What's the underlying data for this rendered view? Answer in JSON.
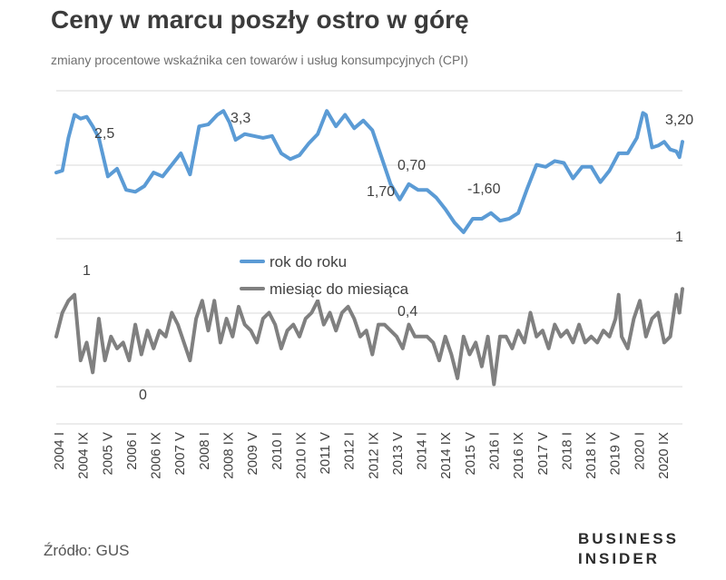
{
  "title": "Ceny w marcu poszły ostro w górę",
  "subtitle": "zmiany procentowe wskaźnika cen towarów i usług konsumpcyjnych (CPI)",
  "source": "Źródło: GUS",
  "logo": {
    "line1": "BUSINESS",
    "line2": "INSIDER"
  },
  "chart_data": {
    "type": "line",
    "x_start": "2004-01",
    "x_end": "2021-03",
    "x_ticks": [
      "2004 I",
      "2004 IX",
      "2005 V",
      "2006 I",
      "2006 IX",
      "2007 V",
      "2008 I",
      "2008 IX",
      "2009 V",
      "2010 I",
      "2010 IX",
      "2011 V",
      "2012 I",
      "2012 IX",
      "2013 V",
      "2014 I",
      "2014 IX",
      "2015 V",
      "2016 I",
      "2016 IX",
      "2017 V",
      "2018 I",
      "2018 IX",
      "2019 V",
      "2020 I",
      "2020 IX"
    ],
    "grid": true,
    "legend_position": "center",
    "series": [
      {
        "name": "rok do roku",
        "color": "#5b9bd5",
        "points": [
          [
            "2004-01",
            1.6
          ],
          [
            "2004-03",
            1.7
          ],
          [
            "2004-05",
            3.4
          ],
          [
            "2004-07",
            4.6
          ],
          [
            "2004-09",
            4.4
          ],
          [
            "2004-11",
            4.5
          ],
          [
            "2005-01",
            4.0
          ],
          [
            "2005-03",
            3.4
          ],
          [
            "2005-06",
            1.4
          ],
          [
            "2005-09",
            1.8
          ],
          [
            "2005-12",
            0.7
          ],
          [
            "2006-03",
            0.6
          ],
          [
            "2006-06",
            0.9
          ],
          [
            "2006-09",
            1.6
          ],
          [
            "2006-12",
            1.4
          ],
          [
            "2007-03",
            2.0
          ],
          [
            "2007-06",
            2.6
          ],
          [
            "2007-09",
            1.5
          ],
          [
            "2007-12",
            4.0
          ],
          [
            "2008-03",
            4.1
          ],
          [
            "2008-06",
            4.6
          ],
          [
            "2008-08",
            4.8
          ],
          [
            "2008-10",
            4.2
          ],
          [
            "2008-12",
            3.3
          ],
          [
            "2009-03",
            3.6
          ],
          [
            "2009-06",
            3.5
          ],
          [
            "2009-09",
            3.4
          ],
          [
            "2009-12",
            3.5
          ],
          [
            "2010-03",
            2.6
          ],
          [
            "2010-06",
            2.3
          ],
          [
            "2010-09",
            2.5
          ],
          [
            "2010-12",
            3.1
          ],
          [
            "2011-03",
            3.6
          ],
          [
            "2011-06",
            4.8
          ],
          [
            "2011-09",
            4.0
          ],
          [
            "2011-12",
            4.6
          ],
          [
            "2012-03",
            3.9
          ],
          [
            "2012-06",
            4.3
          ],
          [
            "2012-09",
            3.8
          ],
          [
            "2012-12",
            2.4
          ],
          [
            "2013-03",
            1.0
          ],
          [
            "2013-06",
            0.2
          ],
          [
            "2013-09",
            1.0
          ],
          [
            "2013-12",
            0.7
          ],
          [
            "2014-03",
            0.7
          ],
          [
            "2014-06",
            0.3
          ],
          [
            "2014-09",
            -0.3
          ],
          [
            "2014-12",
            -1.0
          ],
          [
            "2015-03",
            -1.5
          ],
          [
            "2015-06",
            -0.8
          ],
          [
            "2015-09",
            -0.8
          ],
          [
            "2015-12",
            -0.5
          ],
          [
            "2016-03",
            -0.9
          ],
          [
            "2016-06",
            -0.8
          ],
          [
            "2016-09",
            -0.5
          ],
          [
            "2016-12",
            0.8
          ],
          [
            "2017-03",
            2.0
          ],
          [
            "2017-06",
            1.9
          ],
          [
            "2017-09",
            2.2
          ],
          [
            "2017-12",
            2.1
          ],
          [
            "2018-03",
            1.3
          ],
          [
            "2018-06",
            1.9
          ],
          [
            "2018-09",
            1.9
          ],
          [
            "2018-12",
            1.1
          ],
          [
            "2019-03",
            1.7
          ],
          [
            "2019-06",
            2.6
          ],
          [
            "2019-09",
            2.6
          ],
          [
            "2019-12",
            3.4
          ],
          [
            "2020-02",
            4.7
          ],
          [
            "2020-03",
            4.6
          ],
          [
            "2020-05",
            2.9
          ],
          [
            "2020-07",
            3.0
          ],
          [
            "2020-09",
            3.2
          ],
          [
            "2020-11",
            2.8
          ],
          [
            "2021-01",
            2.7
          ],
          [
            "2021-02",
            2.4
          ],
          [
            "2021-03",
            3.2
          ]
        ]
      },
      {
        "name": "miesiąc do miesiąca",
        "color": "#808080",
        "points": [
          [
            "2004-01",
            0.2
          ],
          [
            "2004-03",
            0.6
          ],
          [
            "2004-05",
            0.8
          ],
          [
            "2004-07",
            0.9
          ],
          [
            "2004-09",
            -0.2
          ],
          [
            "2004-11",
            0.1
          ],
          [
            "2005-01",
            -0.4
          ],
          [
            "2005-03",
            0.5
          ],
          [
            "2005-05",
            -0.2
          ],
          [
            "2005-07",
            0.2
          ],
          [
            "2005-09",
            0.0
          ],
          [
            "2005-11",
            0.1
          ],
          [
            "2006-01",
            -0.2
          ],
          [
            "2006-03",
            0.4
          ],
          [
            "2006-05",
            -0.1
          ],
          [
            "2006-07",
            0.3
          ],
          [
            "2006-09",
            0.0
          ],
          [
            "2006-11",
            0.3
          ],
          [
            "2007-01",
            0.2
          ],
          [
            "2007-03",
            0.6
          ],
          [
            "2007-05",
            0.4
          ],
          [
            "2007-07",
            0.1
          ],
          [
            "2007-09",
            -0.2
          ],
          [
            "2007-11",
            0.5
          ],
          [
            "2008-01",
            0.8
          ],
          [
            "2008-03",
            0.3
          ],
          [
            "2008-05",
            0.8
          ],
          [
            "2008-07",
            0.1
          ],
          [
            "2008-09",
            0.5
          ],
          [
            "2008-11",
            0.2
          ],
          [
            "2009-01",
            0.7
          ],
          [
            "2009-03",
            0.4
          ],
          [
            "2009-05",
            0.3
          ],
          [
            "2009-07",
            0.1
          ],
          [
            "2009-09",
            0.5
          ],
          [
            "2009-11",
            0.6
          ],
          [
            "2010-01",
            0.4
          ],
          [
            "2010-03",
            0.0
          ],
          [
            "2010-05",
            0.3
          ],
          [
            "2010-07",
            0.4
          ],
          [
            "2010-09",
            0.2
          ],
          [
            "2010-11",
            0.5
          ],
          [
            "2011-01",
            0.6
          ],
          [
            "2011-03",
            0.8
          ],
          [
            "2011-05",
            0.4
          ],
          [
            "2011-07",
            0.6
          ],
          [
            "2011-09",
            0.3
          ],
          [
            "2011-11",
            0.6
          ],
          [
            "2012-01",
            0.7
          ],
          [
            "2012-03",
            0.5
          ],
          [
            "2012-05",
            0.2
          ],
          [
            "2012-07",
            0.3
          ],
          [
            "2012-09",
            -0.1
          ],
          [
            "2012-11",
            0.4
          ],
          [
            "2013-01",
            0.4
          ],
          [
            "2013-03",
            0.3
          ],
          [
            "2013-05",
            0.2
          ],
          [
            "2013-07",
            0.0
          ],
          [
            "2013-09",
            0.4
          ],
          [
            "2013-11",
            0.2
          ],
          [
            "2014-01",
            0.2
          ],
          [
            "2014-03",
            0.2
          ],
          [
            "2014-05",
            0.1
          ],
          [
            "2014-07",
            -0.2
          ],
          [
            "2014-09",
            0.2
          ],
          [
            "2014-11",
            -0.1
          ],
          [
            "2015-01",
            -0.5
          ],
          [
            "2015-03",
            0.2
          ],
          [
            "2015-05",
            -0.1
          ],
          [
            "2015-07",
            0.1
          ],
          [
            "2015-09",
            -0.3
          ],
          [
            "2015-11",
            0.2
          ],
          [
            "2016-01",
            -0.6
          ],
          [
            "2016-03",
            0.2
          ],
          [
            "2016-05",
            0.2
          ],
          [
            "2016-07",
            0.0
          ],
          [
            "2016-09",
            0.3
          ],
          [
            "2016-11",
            0.1
          ],
          [
            "2017-01",
            0.6
          ],
          [
            "2017-03",
            0.2
          ],
          [
            "2017-05",
            0.3
          ],
          [
            "2017-07",
            0.0
          ],
          [
            "2017-09",
            0.4
          ],
          [
            "2017-11",
            0.2
          ],
          [
            "2018-01",
            0.3
          ],
          [
            "2018-03",
            0.1
          ],
          [
            "2018-05",
            0.4
          ],
          [
            "2018-07",
            0.1
          ],
          [
            "2018-09",
            0.2
          ],
          [
            "2018-11",
            0.1
          ],
          [
            "2019-01",
            0.3
          ],
          [
            "2019-03",
            0.2
          ],
          [
            "2019-05",
            0.5
          ],
          [
            "2019-06",
            0.9
          ],
          [
            "2019-07",
            0.2
          ],
          [
            "2019-09",
            0.0
          ],
          [
            "2019-11",
            0.5
          ],
          [
            "2020-01",
            0.8
          ],
          [
            "2020-03",
            0.2
          ],
          [
            "2020-05",
            0.5
          ],
          [
            "2020-07",
            0.6
          ],
          [
            "2020-09",
            0.1
          ],
          [
            "2020-11",
            0.2
          ],
          [
            "2021-01",
            0.9
          ],
          [
            "2021-02",
            0.6
          ],
          [
            "2021-03",
            1.0
          ]
        ]
      }
    ],
    "annotations": [
      {
        "series": 0,
        "text": "2,5"
      },
      {
        "series": 0,
        "text": "3,3"
      },
      {
        "series": 0,
        "text": "1,70"
      },
      {
        "series": 0,
        "text": "0,70"
      },
      {
        "series": 0,
        "text": "-1,60"
      },
      {
        "series": 0,
        "text": "3,20"
      },
      {
        "series": 1,
        "text": "1"
      },
      {
        "series": 1,
        "text": "0"
      },
      {
        "series": 1,
        "text": "0,4"
      },
      {
        "series": 1,
        "text": "1"
      }
    ]
  }
}
